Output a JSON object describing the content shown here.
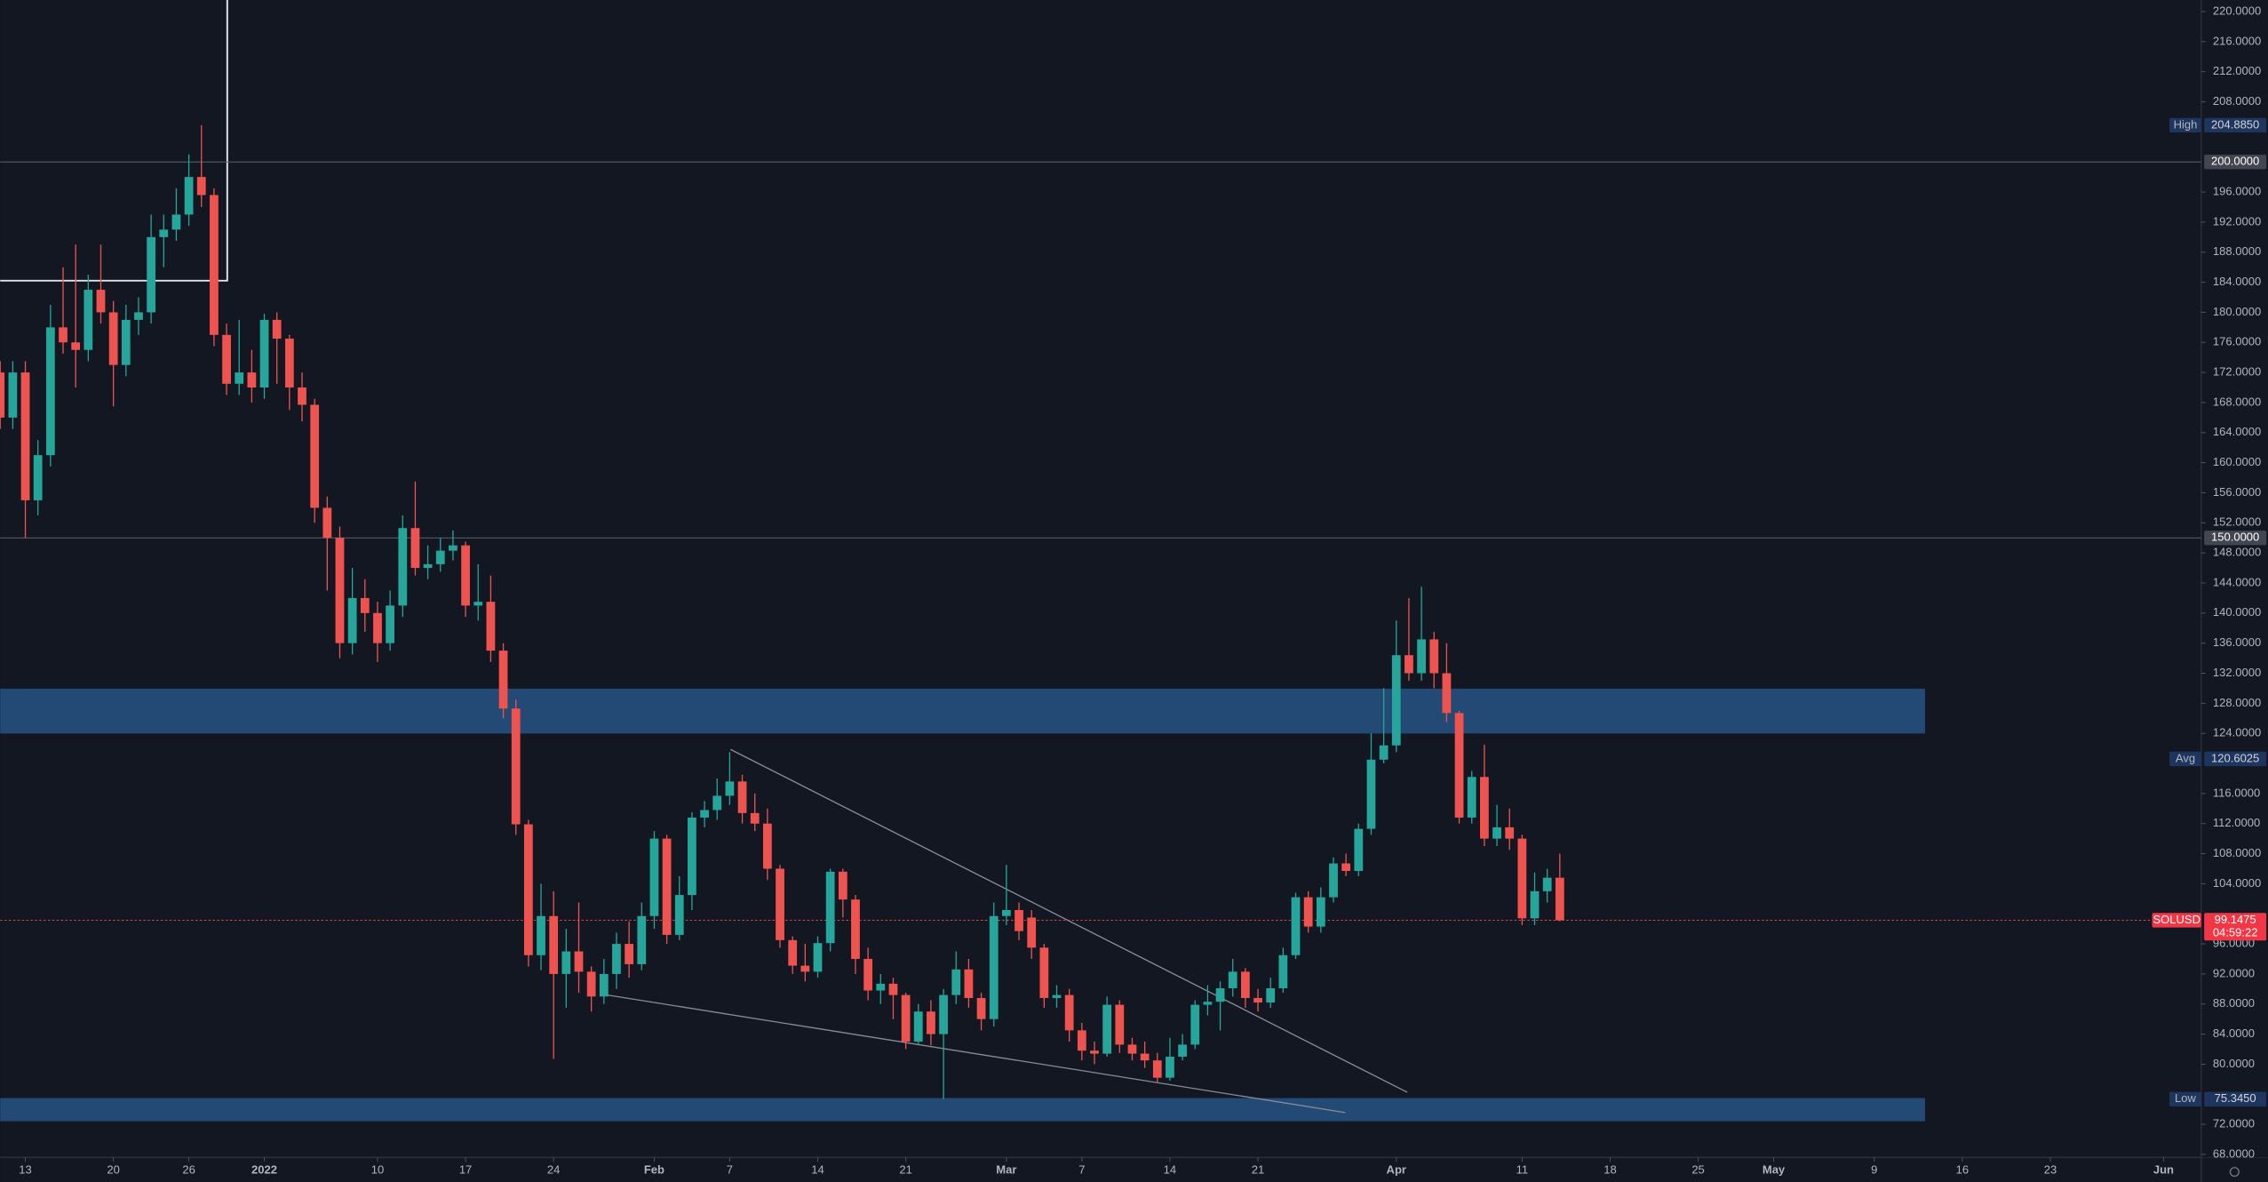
{
  "chart_data": {
    "type": "candlestick",
    "symbol": "SOLUSD",
    "x": [
      "2021-12-11",
      "2021-12-12",
      "2021-12-13",
      "2021-12-14",
      "2021-12-15",
      "2021-12-16",
      "2021-12-17",
      "2021-12-18",
      "2021-12-19",
      "2021-12-20",
      "2021-12-21",
      "2021-12-22",
      "2021-12-23",
      "2021-12-24",
      "2021-12-25",
      "2021-12-26",
      "2021-12-27",
      "2021-12-28",
      "2021-12-29",
      "2021-12-30",
      "2021-12-31",
      "2022-01-01",
      "2022-01-02",
      "2022-01-03",
      "2022-01-04",
      "2022-01-05",
      "2022-01-06",
      "2022-01-07",
      "2022-01-08",
      "2022-01-09",
      "2022-01-10",
      "2022-01-11",
      "2022-01-12",
      "2022-01-13",
      "2022-01-14",
      "2022-01-15",
      "2022-01-16",
      "2022-01-17",
      "2022-01-18",
      "2022-01-19",
      "2022-01-20",
      "2022-01-21",
      "2022-01-22",
      "2022-01-23",
      "2022-01-24",
      "2022-01-25",
      "2022-01-26",
      "2022-01-27",
      "2022-01-28",
      "2022-01-29",
      "2022-01-30",
      "2022-01-31",
      "2022-02-01",
      "2022-02-02",
      "2022-02-03",
      "2022-02-04",
      "2022-02-05",
      "2022-02-06",
      "2022-02-07",
      "2022-02-08",
      "2022-02-09",
      "2022-02-10",
      "2022-02-11",
      "2022-02-12",
      "2022-02-13",
      "2022-02-14",
      "2022-02-15",
      "2022-02-16",
      "2022-02-17",
      "2022-02-18",
      "2022-02-19",
      "2022-02-20",
      "2022-02-21",
      "2022-02-22",
      "2022-02-23",
      "2022-02-24",
      "2022-02-25",
      "2022-02-26",
      "2022-02-27",
      "2022-02-28",
      "2022-03-01",
      "2022-03-02",
      "2022-03-03",
      "2022-03-04",
      "2022-03-05",
      "2022-03-06",
      "2022-03-07",
      "2022-03-08",
      "2022-03-09",
      "2022-03-10",
      "2022-03-11",
      "2022-03-12",
      "2022-03-13",
      "2022-03-14",
      "2022-03-15",
      "2022-03-16",
      "2022-03-17",
      "2022-03-18",
      "2022-03-19",
      "2022-03-20",
      "2022-03-21",
      "2022-03-22",
      "2022-03-23",
      "2022-03-24",
      "2022-03-25",
      "2022-03-26",
      "2022-03-27",
      "2022-03-28",
      "2022-03-29",
      "2022-03-30",
      "2022-03-31",
      "2022-04-01",
      "2022-04-02",
      "2022-04-03",
      "2022-04-04",
      "2022-04-05",
      "2022-04-06",
      "2022-04-07",
      "2022-04-08",
      "2022-04-09",
      "2022-04-10",
      "2022-04-11",
      "2022-04-12",
      "2022-04-13",
      "2022-04-14"
    ],
    "open": [
      172,
      166,
      172,
      155,
      161,
      178,
      176,
      175,
      183,
      180,
      173,
      179,
      180,
      190,
      191,
      193,
      198,
      195.6,
      177,
      170.5,
      172,
      170,
      179,
      176.5,
      170,
      167.7,
      154,
      150,
      136,
      142,
      140,
      136,
      141,
      151.3,
      146,
      146.5,
      148.3,
      149,
      141,
      141.5,
      135,
      127.3,
      111.9,
      94.5,
      99.7,
      92,
      95,
      92.3,
      89,
      92,
      96,
      93.3,
      99.7,
      110,
      97.2,
      102.5,
      112.8,
      113.8,
      115.7,
      117.6,
      113.4,
      112,
      106,
      96.5,
      93.1,
      92.3,
      96.1,
      105.6,
      101.9,
      94,
      89.8,
      90.7,
      89.2,
      83,
      87,
      84,
      89.2,
      92.6,
      88.8,
      86,
      99.7,
      100.5,
      99.5,
      95.5,
      88.8,
      89.2,
      84.5,
      81.8,
      81.4,
      87.9,
      82.6,
      81.4,
      80.5,
      78.2,
      81,
      82.6,
      87.9,
      88.3,
      90.1,
      92.3,
      88.8,
      88.2,
      90.1,
      94.5,
      102.2,
      98.3,
      102.2,
      106.7,
      105.7,
      111.3,
      120.5,
      122.4,
      134.4,
      132,
      136.5,
      132,
      126.7,
      112.8,
      118.2,
      110,
      111.5,
      110,
      99.4,
      103,
      104.8
    ],
    "high": [
      173.5,
      173.5,
      173.5,
      163,
      181,
      186,
      189,
      185,
      189,
      181.5,
      181,
      182,
      193,
      193,
      196.5,
      201,
      204.885,
      196.5,
      178.5,
      179,
      175,
      179.8,
      180,
      177,
      172,
      168.5,
      155.5,
      151.5,
      146,
      144.5,
      141.5,
      143,
      153,
      157.5,
      149,
      150,
      151,
      149.5,
      146.5,
      145,
      136,
      128.5,
      112.5,
      104,
      103,
      98,
      101.5,
      93,
      94,
      97.5,
      99,
      101.5,
      111,
      110.5,
      105,
      113.5,
      115,
      118,
      121.5,
      118.5,
      116,
      114,
      106.5,
      97,
      96,
      97,
      106,
      106,
      102.5,
      95.5,
      92,
      91.5,
      89.5,
      88,
      88.5,
      90,
      95,
      94,
      89.5,
      101.5,
      106.5,
      101.5,
      100.5,
      96,
      90.5,
      90,
      85.5,
      83,
      89,
      88.5,
      83.5,
      83,
      81.5,
      83.5,
      84,
      88.5,
      90.5,
      91,
      94,
      92.8,
      90,
      91.5,
      95.5,
      102.8,
      103,
      103.5,
      107.5,
      108,
      112,
      124,
      130,
      139,
      142,
      143.5,
      137.5,
      136,
      127,
      119,
      122.5,
      114.5,
      114,
      110.5,
      105.5,
      106,
      108
    ],
    "low": [
      164.5,
      164.5,
      150,
      153,
      159.5,
      174.5,
      170,
      173.5,
      178.5,
      167.5,
      171.5,
      177,
      178.5,
      186,
      189.5,
      191.5,
      194,
      175.5,
      169,
      169,
      168,
      168.5,
      170.5,
      167,
      165.5,
      152,
      143,
      134,
      134.5,
      137.5,
      133.5,
      135,
      139.5,
      145,
      144.5,
      145.5,
      147,
      139.5,
      139,
      133.5,
      126,
      110.5,
      93,
      92.5,
      80.7,
      87.5,
      89.5,
      87,
      88,
      90,
      91.5,
      92.5,
      98,
      96,
      96.5,
      100.5,
      111.5,
      112.5,
      114.5,
      112,
      111,
      104.5,
      95.5,
      92,
      91,
      91.5,
      95,
      99.5,
      92,
      88.5,
      88,
      86,
      82,
      82.5,
      82.5,
      75.345,
      88,
      87.5,
      84.5,
      85,
      98.5,
      96.5,
      94,
      87.5,
      87.5,
      83,
      80.5,
      80,
      81,
      81.5,
      80.5,
      79.5,
      77.5,
      77.8,
      80.5,
      82,
      86.5,
      84.5,
      89,
      87.5,
      87,
      87.5,
      89.5,
      94,
      97.5,
      97.5,
      101.5,
      105,
      105,
      110.5,
      120,
      121.5,
      131,
      131,
      130,
      125.5,
      112,
      112,
      109,
      109,
      108.5,
      98.5,
      98.5,
      101.5,
      99
    ],
    "close": [
      166,
      172,
      155,
      161,
      178,
      176,
      175,
      183,
      180,
      173,
      179,
      180,
      190,
      191,
      193,
      198,
      195.6,
      177,
      170.5,
      172,
      170,
      179,
      176.5,
      170,
      167.7,
      154,
      150,
      136,
      142,
      140,
      136,
      141,
      151.3,
      146,
      146.5,
      148.3,
      149,
      141,
      141.5,
      135,
      127.3,
      111.9,
      94.5,
      99.7,
      92,
      95,
      92.3,
      89,
      92,
      96,
      93.3,
      99.7,
      110,
      97.2,
      102.5,
      112.8,
      113.8,
      115.7,
      117.6,
      113.4,
      112,
      106,
      96.5,
      93.1,
      92.3,
      96.1,
      105.6,
      101.9,
      94,
      89.8,
      90.7,
      89.2,
      83,
      87,
      84,
      89.2,
      92.6,
      88.8,
      86,
      99.7,
      100.5,
      97.7,
      95.5,
      88.8,
      89.2,
      84.5,
      81.8,
      81.4,
      87.9,
      82.6,
      81.4,
      80.5,
      78.2,
      81,
      82.6,
      87.9,
      88.3,
      90.1,
      92.3,
      88.8,
      88.2,
      90.1,
      94.5,
      102.2,
      98.3,
      102.2,
      106.7,
      105.7,
      111.3,
      120.5,
      122.4,
      134.4,
      132,
      136.5,
      132,
      126.7,
      112.8,
      118.2,
      110,
      111.5,
      110,
      99.4,
      103,
      104.8,
      99.1475
    ],
    "up_color": "#26a69a",
    "down_color": "#ef5350",
    "ylim": [
      67.6,
      221.54
    ],
    "yticks": [
      {
        "value": 220,
        "label": "220.0000"
      },
      {
        "value": 216,
        "label": "216.0000"
      },
      {
        "value": 212,
        "label": "212.0000"
      },
      {
        "value": 208,
        "label": "208.0000"
      },
      {
        "value": 196,
        "label": "196.0000"
      },
      {
        "value": 192,
        "label": "192.0000"
      },
      {
        "value": 188,
        "label": "188.0000"
      },
      {
        "value": 184,
        "label": "184.0000"
      },
      {
        "value": 180,
        "label": "180.0000"
      },
      {
        "value": 176,
        "label": "176.0000"
      },
      {
        "value": 172,
        "label": "172.0000"
      },
      {
        "value": 168,
        "label": "168.0000"
      },
      {
        "value": 164,
        "label": "164.0000"
      },
      {
        "value": 160,
        "label": "160.0000"
      },
      {
        "value": 156,
        "label": "156.0000"
      },
      {
        "value": 152,
        "label": "152.0000"
      },
      {
        "value": 148,
        "label": "148.0000"
      },
      {
        "value": 144,
        "label": "144.0000"
      },
      {
        "value": 140,
        "label": "140.0000"
      },
      {
        "value": 136,
        "label": "136.0000"
      },
      {
        "value": 132,
        "label": "132.0000"
      },
      {
        "value": 128,
        "label": "128.0000"
      },
      {
        "value": 124,
        "label": "124.0000"
      },
      {
        "value": 116,
        "label": "116.0000"
      },
      {
        "value": 112,
        "label": "112.0000"
      },
      {
        "value": 108,
        "label": "108.0000"
      },
      {
        "value": 104,
        "label": "104.0000"
      },
      {
        "value": 96,
        "label": "96.0000"
      },
      {
        "value": 92,
        "label": "92.0000"
      },
      {
        "value": 88,
        "label": "88.0000"
      },
      {
        "value": 84,
        "label": "84.0000"
      },
      {
        "value": 80,
        "label": "80.0000"
      },
      {
        "value": 72,
        "label": "72.0000"
      },
      {
        "value": 68,
        "label": "68.0000"
      }
    ],
    "xlim": [
      "2021-12-11",
      "2022-06-04"
    ],
    "xticks": [
      {
        "value": "2021-12-13",
        "label": "13"
      },
      {
        "value": "2021-12-20",
        "label": "20"
      },
      {
        "value": "2021-12-26",
        "label": "26"
      },
      {
        "value": "2022-01-01",
        "label": "2022"
      },
      {
        "value": "2022-01-10",
        "label": "10"
      },
      {
        "value": "2022-01-17",
        "label": "17"
      },
      {
        "value": "2022-01-24",
        "label": "24"
      },
      {
        "value": "2022-02-01",
        "label": "Feb"
      },
      {
        "value": "2022-02-07",
        "label": "7"
      },
      {
        "value": "2022-02-14",
        "label": "14"
      },
      {
        "value": "2022-02-21",
        "label": "21"
      },
      {
        "value": "2022-03-01",
        "label": "Mar"
      },
      {
        "value": "2022-03-07",
        "label": "7"
      },
      {
        "value": "2022-03-14",
        "label": "14"
      },
      {
        "value": "2022-03-21",
        "label": "21"
      },
      {
        "value": "2022-04-01",
        "label": "Apr"
      },
      {
        "value": "2022-04-11",
        "label": "11"
      },
      {
        "value": "2022-04-18",
        "label": "18"
      },
      {
        "value": "2022-04-25",
        "label": "25"
      },
      {
        "value": "2022-05-01",
        "label": "May"
      },
      {
        "value": "2022-05-09",
        "label": "9"
      },
      {
        "value": "2022-05-16",
        "label": "16"
      },
      {
        "value": "2022-05-23",
        "label": "23"
      },
      {
        "value": "2022-06-01",
        "label": "Jun"
      }
    ],
    "hlines": [
      {
        "value": 200,
        "label": "200.0000"
      },
      {
        "value": 150,
        "label": "150.0000"
      }
    ],
    "markers": [
      {
        "name": "High",
        "value": 204.885,
        "label": "204.8850"
      },
      {
        "name": "Avg",
        "value": 120.6025,
        "label": "120.6025"
      },
      {
        "name": "Low",
        "value": 75.345,
        "label": "75.3450"
      }
    ],
    "countdown": "04:59:22"
  }
}
